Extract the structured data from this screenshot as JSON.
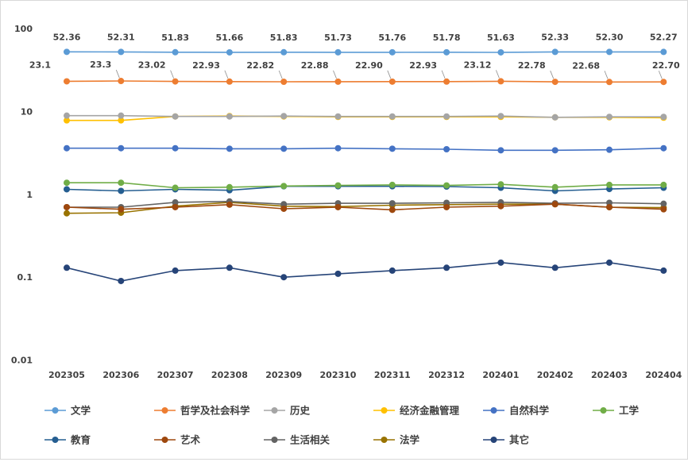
{
  "chart_data": {
    "type": "line",
    "y_scale": "log",
    "ylim": [
      0.01,
      100
    ],
    "y_ticks": [
      "100",
      "10",
      "1",
      "0.1",
      "0.01"
    ],
    "y_tick_values": [
      100,
      10,
      1,
      0.1,
      0.01
    ],
    "grid": false,
    "legend_position": "bottom",
    "categories": [
      "202305",
      "202306",
      "202307",
      "202308",
      "202309",
      "202310",
      "202311",
      "202312",
      "202401",
      "202402",
      "202403",
      "202404"
    ],
    "series": [
      {
        "name": "文学",
        "color": "#5B9BD5",
        "values": [
          52.36,
          52.31,
          51.83,
          51.66,
          51.83,
          51.73,
          51.76,
          51.78,
          51.63,
          52.33,
          52.3,
          52.27
        ],
        "labels": [
          "52.36",
          "52.31",
          "51.83",
          "51.66",
          "51.83",
          "51.73",
          "51.76",
          "51.78",
          "51.63",
          "52.33",
          "52.30",
          "52.27"
        ]
      },
      {
        "name": "哲学及社会科学",
        "color": "#ED7D31",
        "values": [
          23.1,
          23.3,
          23.02,
          22.93,
          22.82,
          22.88,
          22.9,
          22.93,
          23.12,
          22.78,
          22.68,
          22.7
        ],
        "labels": [
          "23.1",
          "23.3",
          "23.02",
          "22.93",
          "22.82",
          "22.88",
          "22.90",
          "22.93",
          "23.12",
          "22.78",
          "22.68",
          "22.70"
        ]
      },
      {
        "name": "历史",
        "color": "#A5A5A5",
        "values": [
          8.9,
          8.9,
          8.7,
          8.7,
          8.8,
          8.7,
          8.7,
          8.7,
          8.8,
          8.5,
          8.6,
          8.6
        ]
      },
      {
        "name": "经济金融管理",
        "color": "#FFC000",
        "values": [
          7.8,
          7.8,
          8.7,
          8.8,
          8.7,
          8.6,
          8.6,
          8.6,
          8.6,
          8.5,
          8.5,
          8.4
        ]
      },
      {
        "name": "自然科学",
        "color": "#4472C4",
        "values": [
          3.6,
          3.6,
          3.6,
          3.55,
          3.55,
          3.6,
          3.55,
          3.5,
          3.4,
          3.4,
          3.45,
          3.6
        ]
      },
      {
        "name": "工学",
        "color": "#70AD47",
        "values": [
          1.38,
          1.38,
          1.2,
          1.22,
          1.26,
          1.28,
          1.3,
          1.28,
          1.32,
          1.22,
          1.3,
          1.3
        ]
      },
      {
        "name": "教育",
        "color": "#255E91",
        "values": [
          1.15,
          1.1,
          1.15,
          1.12,
          1.25,
          1.25,
          1.25,
          1.24,
          1.2,
          1.1,
          1.16,
          1.2
        ]
      },
      {
        "name": "艺术",
        "color": "#9E480E",
        "values": [
          0.7,
          0.66,
          0.7,
          0.75,
          0.67,
          0.7,
          0.65,
          0.7,
          0.72,
          0.76,
          0.7,
          0.66
        ]
      },
      {
        "name": "生活相关",
        "color": "#636363",
        "values": [
          0.7,
          0.7,
          0.8,
          0.82,
          0.76,
          0.78,
          0.78,
          0.79,
          0.8,
          0.78,
          0.79,
          0.77
        ]
      },
      {
        "name": "法学",
        "color": "#997300",
        "values": [
          0.59,
          0.6,
          0.72,
          0.8,
          0.72,
          0.71,
          0.74,
          0.75,
          0.76,
          0.76,
          0.7,
          0.69
        ]
      },
      {
        "name": "其它",
        "color": "#264478",
        "values": [
          0.13,
          0.09,
          0.12,
          0.13,
          0.1,
          0.11,
          0.12,
          0.13,
          0.15,
          0.13,
          0.15,
          0.12
        ]
      }
    ]
  }
}
